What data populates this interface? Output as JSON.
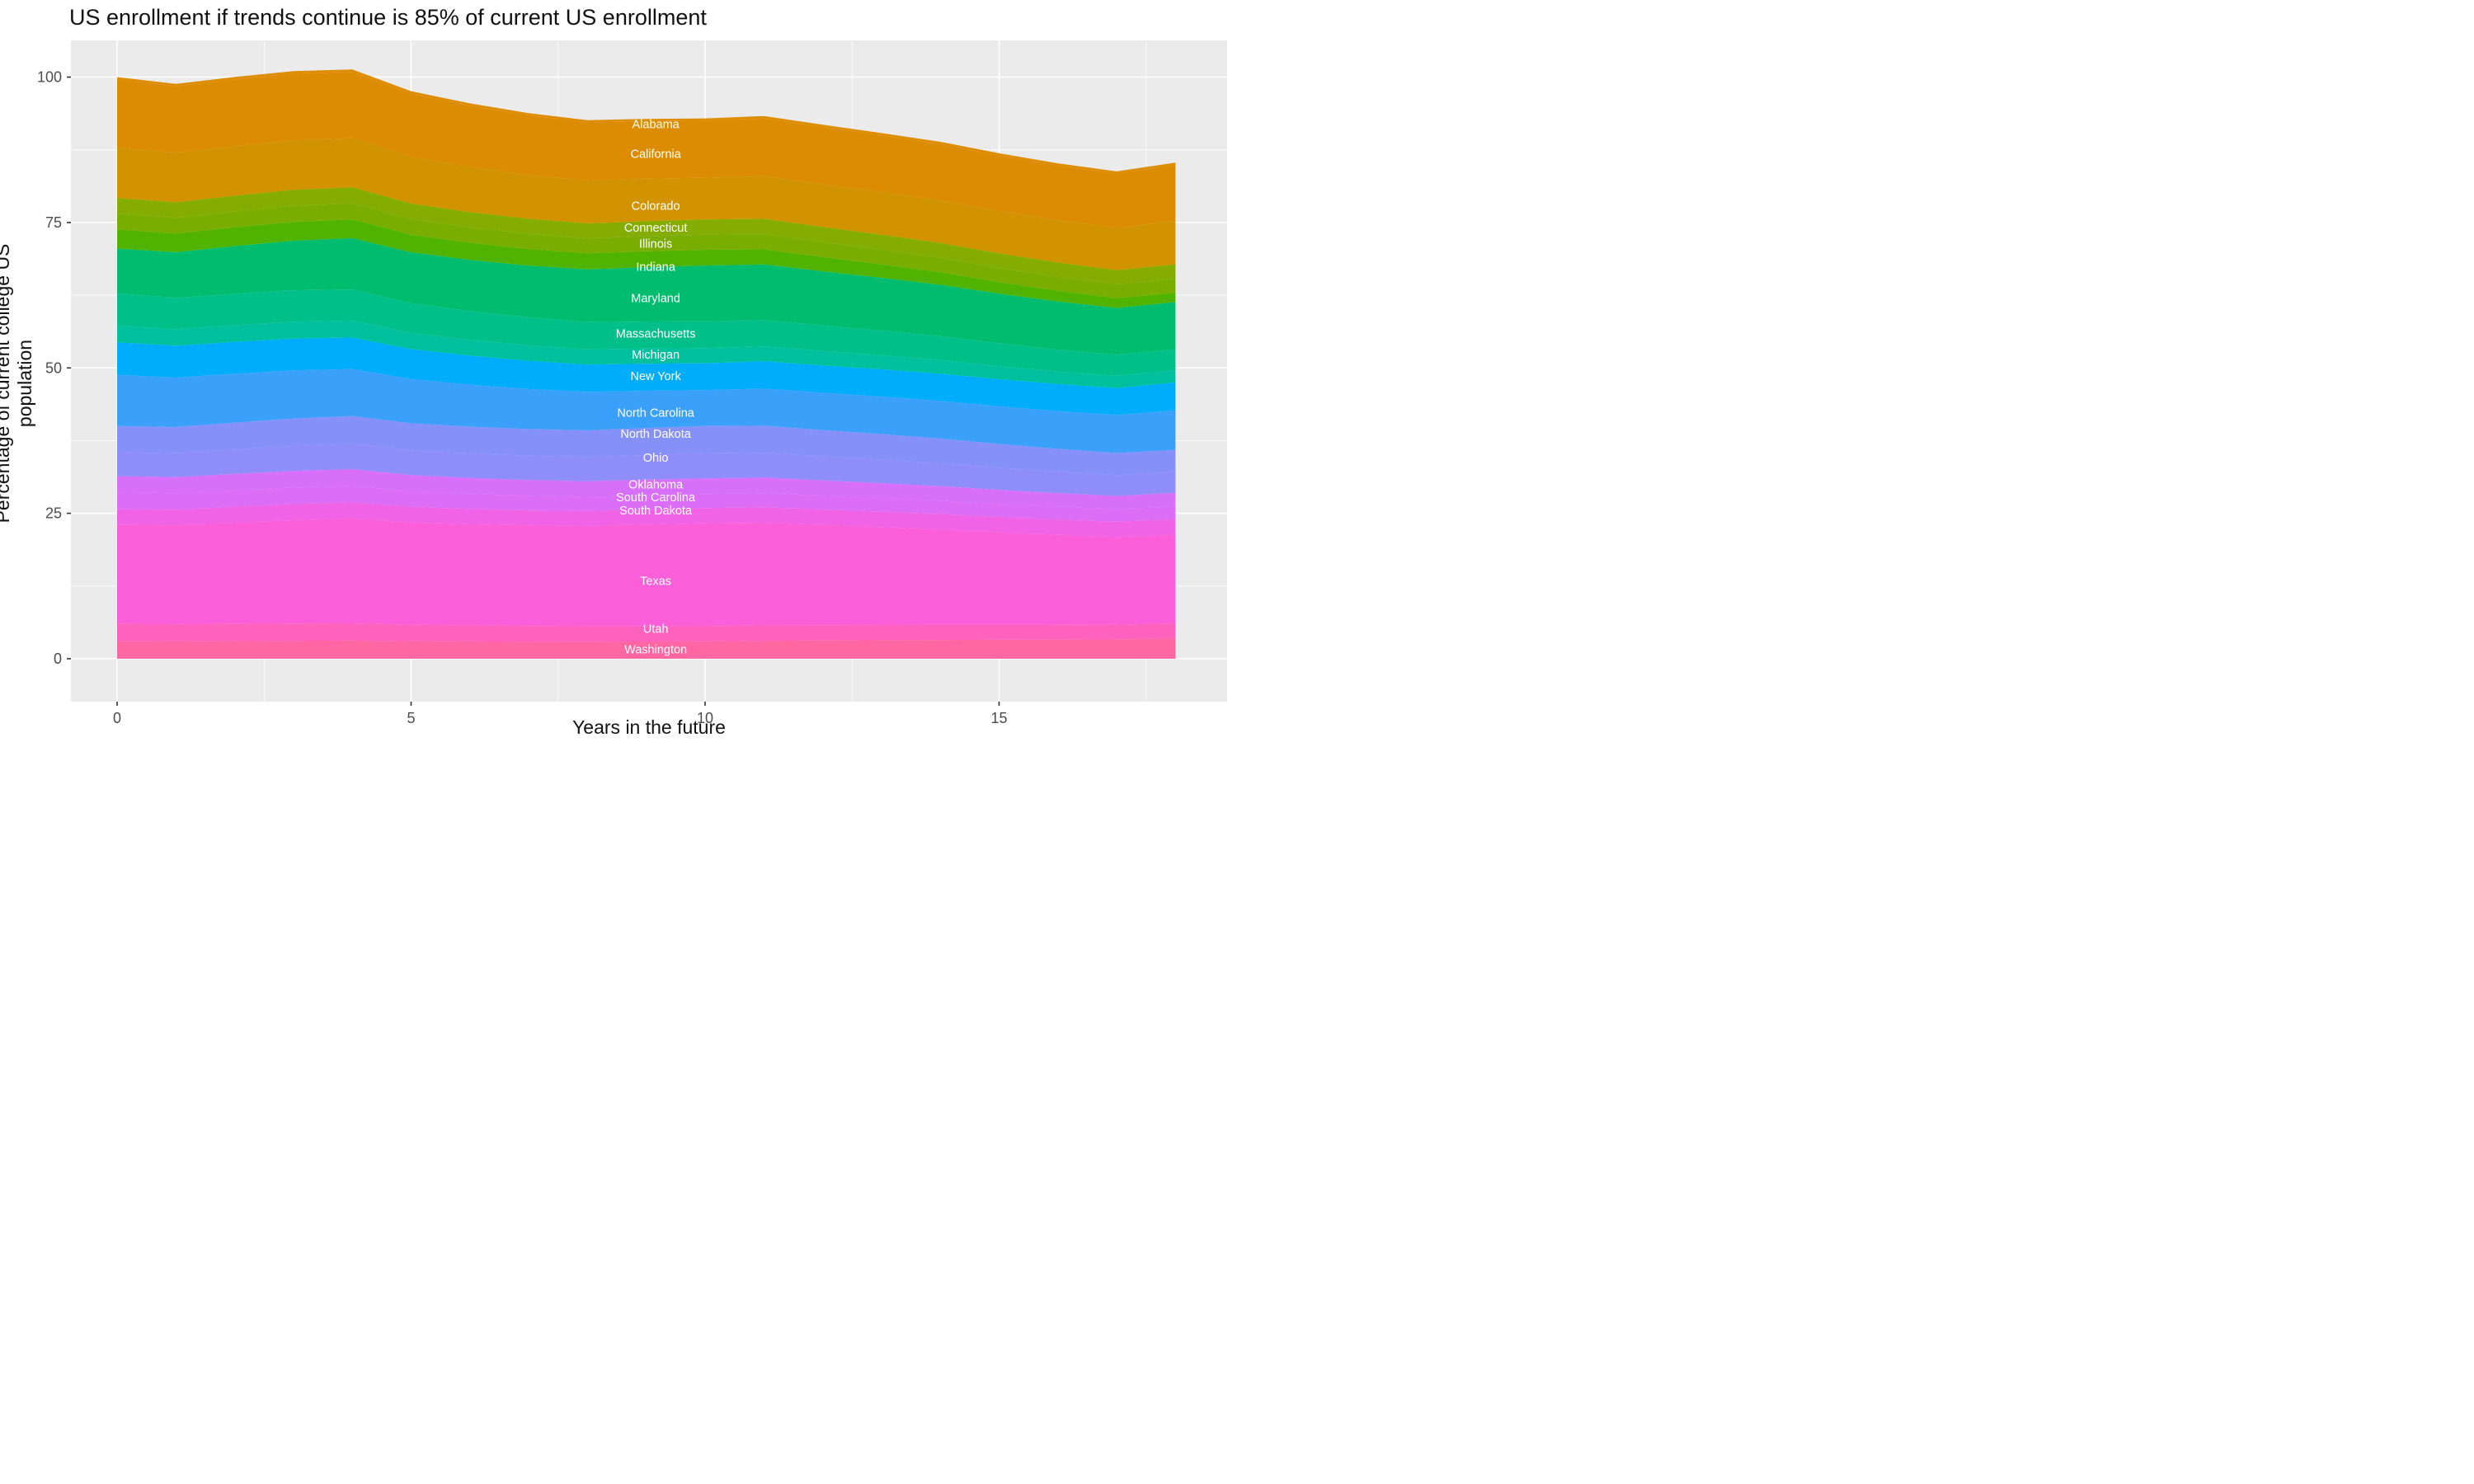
{
  "title": "US enrollment if trends continue is 85% of current US enrollment",
  "y_axis": {
    "title": "Percentage of current college US population",
    "tick_labels": [
      "0",
      "25",
      "50",
      "75",
      "100"
    ],
    "tick_values": [
      0,
      25,
      50,
      75,
      100
    ],
    "minor_values": [
      12.5,
      37.5,
      62.5,
      87.5
    ]
  },
  "x_axis": {
    "title": "Years in the future",
    "tick_labels": [
      "0",
      "5",
      "10",
      "15"
    ],
    "tick_values": [
      0,
      5,
      10,
      15
    ],
    "minor_values": [
      2.5,
      7.5,
      12.5,
      17.5
    ]
  },
  "panel": {
    "bg": "#EBEBEB",
    "grid_color": "#FFFFFF",
    "tick_mark_color": "#333333",
    "tick_label_color": "#4D4D4D",
    "state_label_color": "#FFFFFF"
  },
  "chart_data": {
    "type": "area",
    "stacked": true,
    "title": "US enrollment if trends continue is 85% of current US enrollment",
    "xlabel": "Years in the future",
    "ylabel": "Percentage of current college US population",
    "xlim": [
      0,
      18
    ],
    "ylim": [
      0,
      100
    ],
    "grid": true,
    "legend": "labels-inside-areas",
    "label_year": 9.16,
    "x": [
      0,
      1,
      2,
      3,
      4,
      5,
      6,
      7,
      8,
      9,
      10,
      11,
      12,
      13,
      14,
      15,
      16,
      17,
      18
    ],
    "stack_total_by_year": [
      100.0,
      98.8,
      100.0,
      101.0,
      101.3,
      97.6,
      95.5,
      93.8,
      92.6,
      92.8,
      92.9,
      93.3,
      91.8,
      90.4,
      88.9,
      86.9,
      85.2,
      83.8,
      85.3
    ],
    "series": [
      {
        "name": "Alabama",
        "color": "#DF8D00",
        "label_v": 91.9,
        "values": [
          0.4,
          0.4,
          0.41,
          0.41,
          0.42,
          0.4,
          0.4,
          0.39,
          0.39,
          0.4,
          0.4,
          0.41,
          0.4,
          0.4,
          0.4,
          0.39,
          0.39,
          0.39,
          0.4
        ]
      },
      {
        "name": "California",
        "color": "#DC8C00",
        "label_v": 86.8,
        "values": [
          11.7,
          11.45,
          11.48,
          11.49,
          11.41,
          10.88,
          10.53,
          10.24,
          9.99,
          9.9,
          9.8,
          9.92,
          9.84,
          9.76,
          9.68,
          9.54,
          9.43,
          9.35,
          9.6
        ]
      },
      {
        "name": "Colorado",
        "color": "#D29300",
        "label_v": 77.9,
        "values": [
          8.7,
          8.51,
          8.52,
          8.51,
          8.45,
          8.04,
          7.78,
          7.55,
          7.36,
          7.29,
          7.2,
          7.34,
          7.34,
          7.34,
          7.33,
          7.28,
          7.25,
          7.25,
          7.5
        ]
      },
      {
        "name": "Connecticut",
        "color": "#85AC00",
        "label_v": 74.1,
        "values": [
          2.7,
          2.68,
          2.72,
          2.76,
          2.77,
          2.68,
          2.63,
          2.6,
          2.57,
          2.59,
          2.6,
          2.63,
          2.6,
          2.57,
          2.54,
          2.5,
          2.47,
          2.44,
          2.5
        ]
      },
      {
        "name": "Illinois",
        "color": "#79AE00",
        "label_v": 71.4,
        "values": [
          2.7,
          2.68,
          2.72,
          2.76,
          2.77,
          2.68,
          2.63,
          2.6,
          2.57,
          2.59,
          2.6,
          2.61,
          2.57,
          2.53,
          2.49,
          2.44,
          2.39,
          2.36,
          2.4
        ]
      },
      {
        "name": "Indiana",
        "color": "#4FB300",
        "label_v": 67.4,
        "values": [
          3.3,
          3.22,
          3.23,
          3.22,
          3.19,
          3.04,
          2.93,
          2.84,
          2.77,
          2.74,
          2.7,
          2.6,
          2.45,
          2.3,
          2.15,
          1.98,
          1.83,
          1.69,
          1.6
        ]
      },
      {
        "name": "Maryland",
        "color": "#00BC6E",
        "label_v": 62.0,
        "values": [
          7.7,
          7.85,
          8.2,
          8.53,
          8.82,
          8.75,
          8.82,
          8.91,
          9.05,
          9.33,
          9.6,
          9.55,
          9.31,
          9.07,
          8.83,
          8.54,
          8.28,
          8.05,
          8.1
        ]
      },
      {
        "name": "Massachusetts",
        "color": "#00BF89",
        "label_v": 55.9,
        "values": [
          5.5,
          5.38,
          5.4,
          5.4,
          5.36,
          5.11,
          4.95,
          4.81,
          4.69,
          4.65,
          4.6,
          4.54,
          4.39,
          4.24,
          4.09,
          3.92,
          3.76,
          3.62,
          3.6
        ]
      },
      {
        "name": "Michigan",
        "color": "#00C09D",
        "label_v": 52.3,
        "values": [
          2.9,
          2.86,
          2.88,
          2.9,
          2.9,
          2.78,
          2.71,
          2.66,
          2.61,
          2.61,
          2.6,
          2.57,
          2.5,
          2.42,
          2.34,
          2.26,
          2.17,
          2.1,
          2.1
        ]
      },
      {
        "name": "New York",
        "color": "#00ACFC",
        "label_v": 48.6,
        "values": [
          5.6,
          5.47,
          5.48,
          5.47,
          5.42,
          5.16,
          4.99,
          4.84,
          4.71,
          4.66,
          4.6,
          4.69,
          4.69,
          4.69,
          4.69,
          4.66,
          4.64,
          4.64,
          4.8
        ]
      },
      {
        "name": "North Carolina",
        "color": "#3AA0FA",
        "label_v": 42.3,
        "values": [
          8.8,
          8.5,
          8.4,
          8.28,
          8.09,
          7.59,
          7.22,
          6.89,
          6.6,
          6.4,
          6.2,
          6.37,
          6.41,
          6.45,
          6.49,
          6.48,
          6.5,
          6.53,
          6.8
        ]
      },
      {
        "name": "North Dakota",
        "color": "#8590F8",
        "label_v": 38.7,
        "values": [
          4.5,
          4.5,
          4.61,
          4.71,
          4.78,
          4.65,
          4.61,
          4.58,
          4.58,
          4.64,
          4.7,
          4.65,
          4.51,
          4.38,
          4.24,
          4.08,
          3.93,
          3.8,
          3.8
        ]
      },
      {
        "name": "Ohio",
        "color": "#8F8DF9",
        "label_v": 34.6,
        "values": [
          4.1,
          4.1,
          4.2,
          4.29,
          4.36,
          4.25,
          4.21,
          4.19,
          4.18,
          4.24,
          4.3,
          4.27,
          4.16,
          4.05,
          3.94,
          3.81,
          3.69,
          3.58,
          3.6
        ]
      },
      {
        "name": "Oklahoma",
        "color": "#D76FF8",
        "label_v": 30.0,
        "values": [
          2.8,
          2.78,
          2.82,
          2.86,
          2.88,
          2.78,
          2.73,
          2.69,
          2.67,
          2.69,
          2.7,
          2.69,
          2.62,
          2.56,
          2.49,
          2.42,
          2.34,
          2.28,
          2.3
        ]
      },
      {
        "name": "South Carolina",
        "color": "#DB6DF6",
        "label_v": 27.8,
        "values": [
          2.9,
          2.84,
          2.84,
          2.84,
          2.82,
          2.68,
          2.59,
          2.52,
          2.45,
          2.43,
          2.4,
          2.41,
          2.37,
          2.33,
          2.29,
          2.24,
          2.2,
          2.16,
          2.2
        ]
      },
      {
        "name": "South Dakota",
        "color": "#F163E6",
        "label_v": 25.5,
        "values": [
          2.7,
          2.68,
          2.72,
          2.76,
          2.77,
          2.68,
          2.63,
          2.6,
          2.57,
          2.59,
          2.6,
          2.65,
          2.65,
          2.65,
          2.64,
          2.62,
          2.61,
          2.61,
          2.7
        ]
      },
      {
        "name": "Texas",
        "color": "#FA5ED9",
        "label_v": 13.4,
        "values": [
          17.0,
          16.99,
          17.39,
          17.76,
          18.02,
          17.56,
          17.38,
          17.26,
          17.24,
          17.48,
          17.7,
          17.64,
          17.23,
          16.83,
          16.41,
          15.91,
          15.46,
          15.07,
          15.2
        ]
      },
      {
        "name": "Utah",
        "color": "#FF62BE",
        "label_v": 5.2,
        "values": [
          3.0,
          2.95,
          2.96,
          2.97,
          2.96,
          2.83,
          2.75,
          2.68,
          2.63,
          2.62,
          2.6,
          2.64,
          2.62,
          2.61,
          2.59,
          2.56,
          2.54,
          2.53,
          2.6
        ]
      },
      {
        "name": "Washington",
        "color": "#FF66A2",
        "label_v": 1.6,
        "values": [
          3.0,
          2.99,
          3.04,
          3.1,
          3.13,
          3.04,
          2.99,
          2.96,
          2.95,
          2.97,
          3.0,
          3.11,
          3.15,
          3.2,
          3.24,
          3.27,
          3.3,
          3.34,
          3.5
        ]
      }
    ]
  }
}
